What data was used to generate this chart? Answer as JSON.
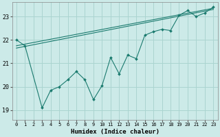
{
  "xlabel": "Humidex (Indice chaleur)",
  "bg_color": "#cceae8",
  "grid_color": "#aad4d0",
  "line_color": "#1a7a6e",
  "xlim": [
    -0.5,
    23.5
  ],
  "ylim": [
    18.6,
    23.6
  ],
  "yticks": [
    19,
    20,
    21,
    22,
    23
  ],
  "xticks": [
    0,
    1,
    2,
    3,
    4,
    5,
    6,
    7,
    8,
    9,
    10,
    11,
    12,
    13,
    14,
    15,
    16,
    17,
    18,
    19,
    20,
    21,
    22,
    23
  ],
  "line1_x": [
    0,
    1,
    3,
    4,
    5,
    6,
    7,
    8,
    9,
    10,
    11,
    12,
    13,
    14,
    15,
    16,
    17,
    18,
    19,
    20,
    21,
    22,
    23
  ],
  "line1_y": [
    22.0,
    21.75,
    19.1,
    19.85,
    20.0,
    20.3,
    20.65,
    20.3,
    19.45,
    20.05,
    21.25,
    20.55,
    21.35,
    21.2,
    22.2,
    22.35,
    22.45,
    22.4,
    23.05,
    23.25,
    23.0,
    23.15,
    23.4
  ],
  "trend1_x": [
    0,
    23
  ],
  "trend1_y": [
    21.75,
    23.35
  ],
  "trend2_x": [
    0,
    23
  ],
  "trend2_y": [
    21.65,
    23.3
  ]
}
